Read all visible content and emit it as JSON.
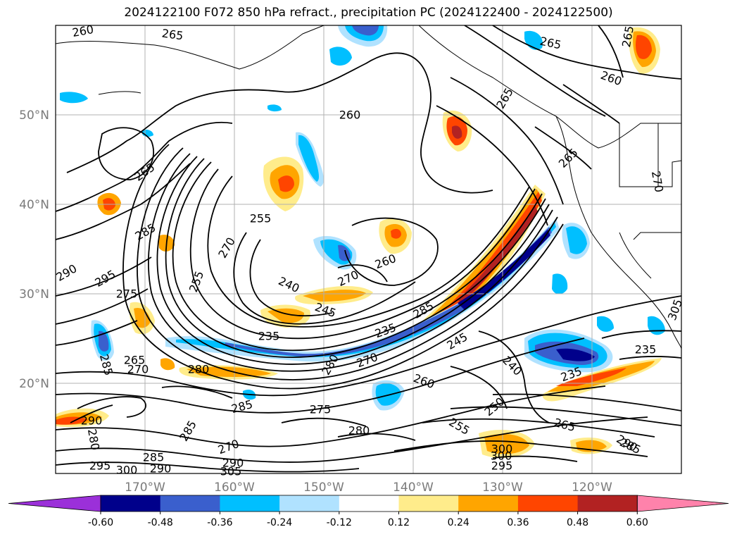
{
  "title": "2024122100 F072 850 hPa refract., precipitation PC (2024122400 - 2024122500)",
  "lat_labels": [
    "50°N",
    "40°N",
    "30°N",
    "20°N"
  ],
  "lon_labels": [
    "170°W",
    "160°W",
    "150°W",
    "140°W",
    "130°W",
    "120°W"
  ],
  "colorbar": {
    "ticks": [
      "-0.60",
      "-0.48",
      "-0.36",
      "-0.24",
      "-0.12",
      "0.12",
      "0.24",
      "0.36",
      "0.48",
      "0.60"
    ],
    "colors": [
      "#9b30d9",
      "#00008b",
      "#3a5fcd",
      "#00bfff",
      "#b0e2ff",
      "#ffffff",
      "#ffec8b",
      "#ffa500",
      "#ff4500",
      "#b22222",
      "#ff82ab"
    ]
  },
  "contour_labels": [
    "260",
    "265",
    "265",
    "265",
    "265",
    "260",
    "260",
    "265",
    "265",
    "270",
    "255",
    "285",
    "290",
    "295",
    "275",
    "255",
    "270",
    "240",
    "270",
    "260",
    "245",
    "235",
    "285",
    "265",
    "270",
    "285",
    "280",
    "285",
    "280",
    "270",
    "245",
    "240",
    "235",
    "235",
    "235",
    "260",
    "250",
    "255",
    "265",
    "275",
    "280",
    "285",
    "290",
    "270",
    "285",
    "290",
    "280",
    "300",
    "295",
    "300",
    "290",
    "305",
    "295",
    "300",
    "290",
    "305",
    "285"
  ]
}
